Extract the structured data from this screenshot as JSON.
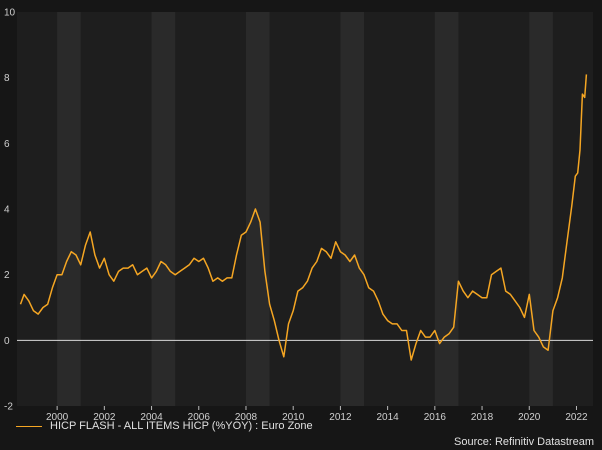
{
  "chart_data": {
    "type": "line",
    "title": "",
    "xlabel": "",
    "ylabel": "",
    "xlim": [
      1998.3,
      2022.7
    ],
    "ylim": [
      -2,
      10
    ],
    "y_ticks": [
      -2,
      0,
      2,
      4,
      6,
      8,
      10
    ],
    "x_ticks": [
      2000,
      2002,
      2004,
      2006,
      2008,
      2010,
      2012,
      2014,
      2016,
      2018,
      2020,
      2022
    ],
    "x_tick_labels": [
      "2000",
      "2002",
      "2004",
      "2006",
      "2008",
      "2010",
      "2012",
      "2014",
      "2016",
      "2018",
      "2020",
      "2022"
    ],
    "background": "#1e1e1e",
    "band_color": "#2a2a2a",
    "zero_line_color": "#d8d8d8",
    "series": [
      {
        "name": "HICP FLASH - ALL ITEMS HICP (%YOY) : Euro Zone",
        "color": "#f5a623",
        "x": [
          1998.45,
          1998.6,
          1998.8,
          1999.0,
          1999.2,
          1999.4,
          1999.6,
          1999.8,
          2000.0,
          2000.2,
          2000.4,
          2000.6,
          2000.8,
          2001.0,
          2001.2,
          2001.4,
          2001.6,
          2001.8,
          2002.0,
          2002.2,
          2002.4,
          2002.6,
          2002.8,
          2003.0,
          2003.2,
          2003.4,
          2003.6,
          2003.8,
          2004.0,
          2004.2,
          2004.4,
          2004.6,
          2004.8,
          2005.0,
          2005.2,
          2005.4,
          2005.6,
          2005.8,
          2006.0,
          2006.2,
          2006.4,
          2006.6,
          2006.8,
          2007.0,
          2007.2,
          2007.4,
          2007.6,
          2007.8,
          2008.0,
          2008.2,
          2008.4,
          2008.6,
          2008.8,
          2009.0,
          2009.2,
          2009.4,
          2009.6,
          2009.8,
          2010.0,
          2010.2,
          2010.4,
          2010.6,
          2010.8,
          2011.0,
          2011.2,
          2011.4,
          2011.6,
          2011.8,
          2012.0,
          2012.2,
          2012.4,
          2012.6,
          2012.8,
          2013.0,
          2013.2,
          2013.4,
          2013.6,
          2013.8,
          2014.0,
          2014.2,
          2014.4,
          2014.6,
          2014.8,
          2015.0,
          2015.2,
          2015.4,
          2015.6,
          2015.8,
          2016.0,
          2016.2,
          2016.4,
          2016.6,
          2016.8,
          2017.0,
          2017.2,
          2017.4,
          2017.6,
          2017.8,
          2018.0,
          2018.2,
          2018.4,
          2018.6,
          2018.8,
          2019.0,
          2019.2,
          2019.4,
          2019.6,
          2019.8,
          2020.0,
          2020.2,
          2020.4,
          2020.6,
          2020.8,
          2021.0,
          2021.2,
          2021.4,
          2021.6,
          2021.8,
          2021.95,
          2022.05,
          2022.15,
          2022.25,
          2022.35,
          2022.42
        ],
        "values": [
          1.1,
          1.4,
          1.2,
          0.9,
          0.8,
          1.0,
          1.1,
          1.6,
          2.0,
          2.0,
          2.4,
          2.7,
          2.6,
          2.3,
          2.9,
          3.3,
          2.6,
          2.2,
          2.5,
          2.0,
          1.8,
          2.1,
          2.2,
          2.2,
          2.3,
          2.0,
          2.1,
          2.2,
          1.9,
          2.1,
          2.4,
          2.3,
          2.1,
          2.0,
          2.1,
          2.2,
          2.3,
          2.5,
          2.4,
          2.5,
          2.2,
          1.8,
          1.9,
          1.8,
          1.9,
          1.9,
          2.6,
          3.2,
          3.3,
          3.6,
          4.0,
          3.6,
          2.1,
          1.1,
          0.6,
          0.0,
          -0.5,
          0.5,
          0.9,
          1.5,
          1.6,
          1.8,
          2.2,
          2.4,
          2.8,
          2.7,
          2.5,
          3.0,
          2.7,
          2.6,
          2.4,
          2.6,
          2.2,
          2.0,
          1.6,
          1.5,
          1.2,
          0.8,
          0.6,
          0.5,
          0.5,
          0.3,
          0.3,
          -0.6,
          -0.1,
          0.3,
          0.1,
          0.1,
          0.3,
          -0.1,
          0.1,
          0.2,
          0.4,
          1.8,
          1.5,
          1.3,
          1.5,
          1.4,
          1.3,
          1.3,
          2.0,
          2.1,
          2.2,
          1.5,
          1.4,
          1.2,
          1.0,
          0.7,
          1.4,
          0.3,
          0.1,
          -0.2,
          -0.3,
          0.9,
          1.3,
          1.9,
          3.0,
          4.1,
          5.0,
          5.1,
          5.8,
          7.5,
          7.4,
          8.1
        ]
      }
    ]
  },
  "legend": {
    "label": "HICP FLASH - ALL ITEMS HICP (%YOY) : Euro Zone"
  },
  "source": {
    "text": "Source: Refinitiv Datastream"
  }
}
